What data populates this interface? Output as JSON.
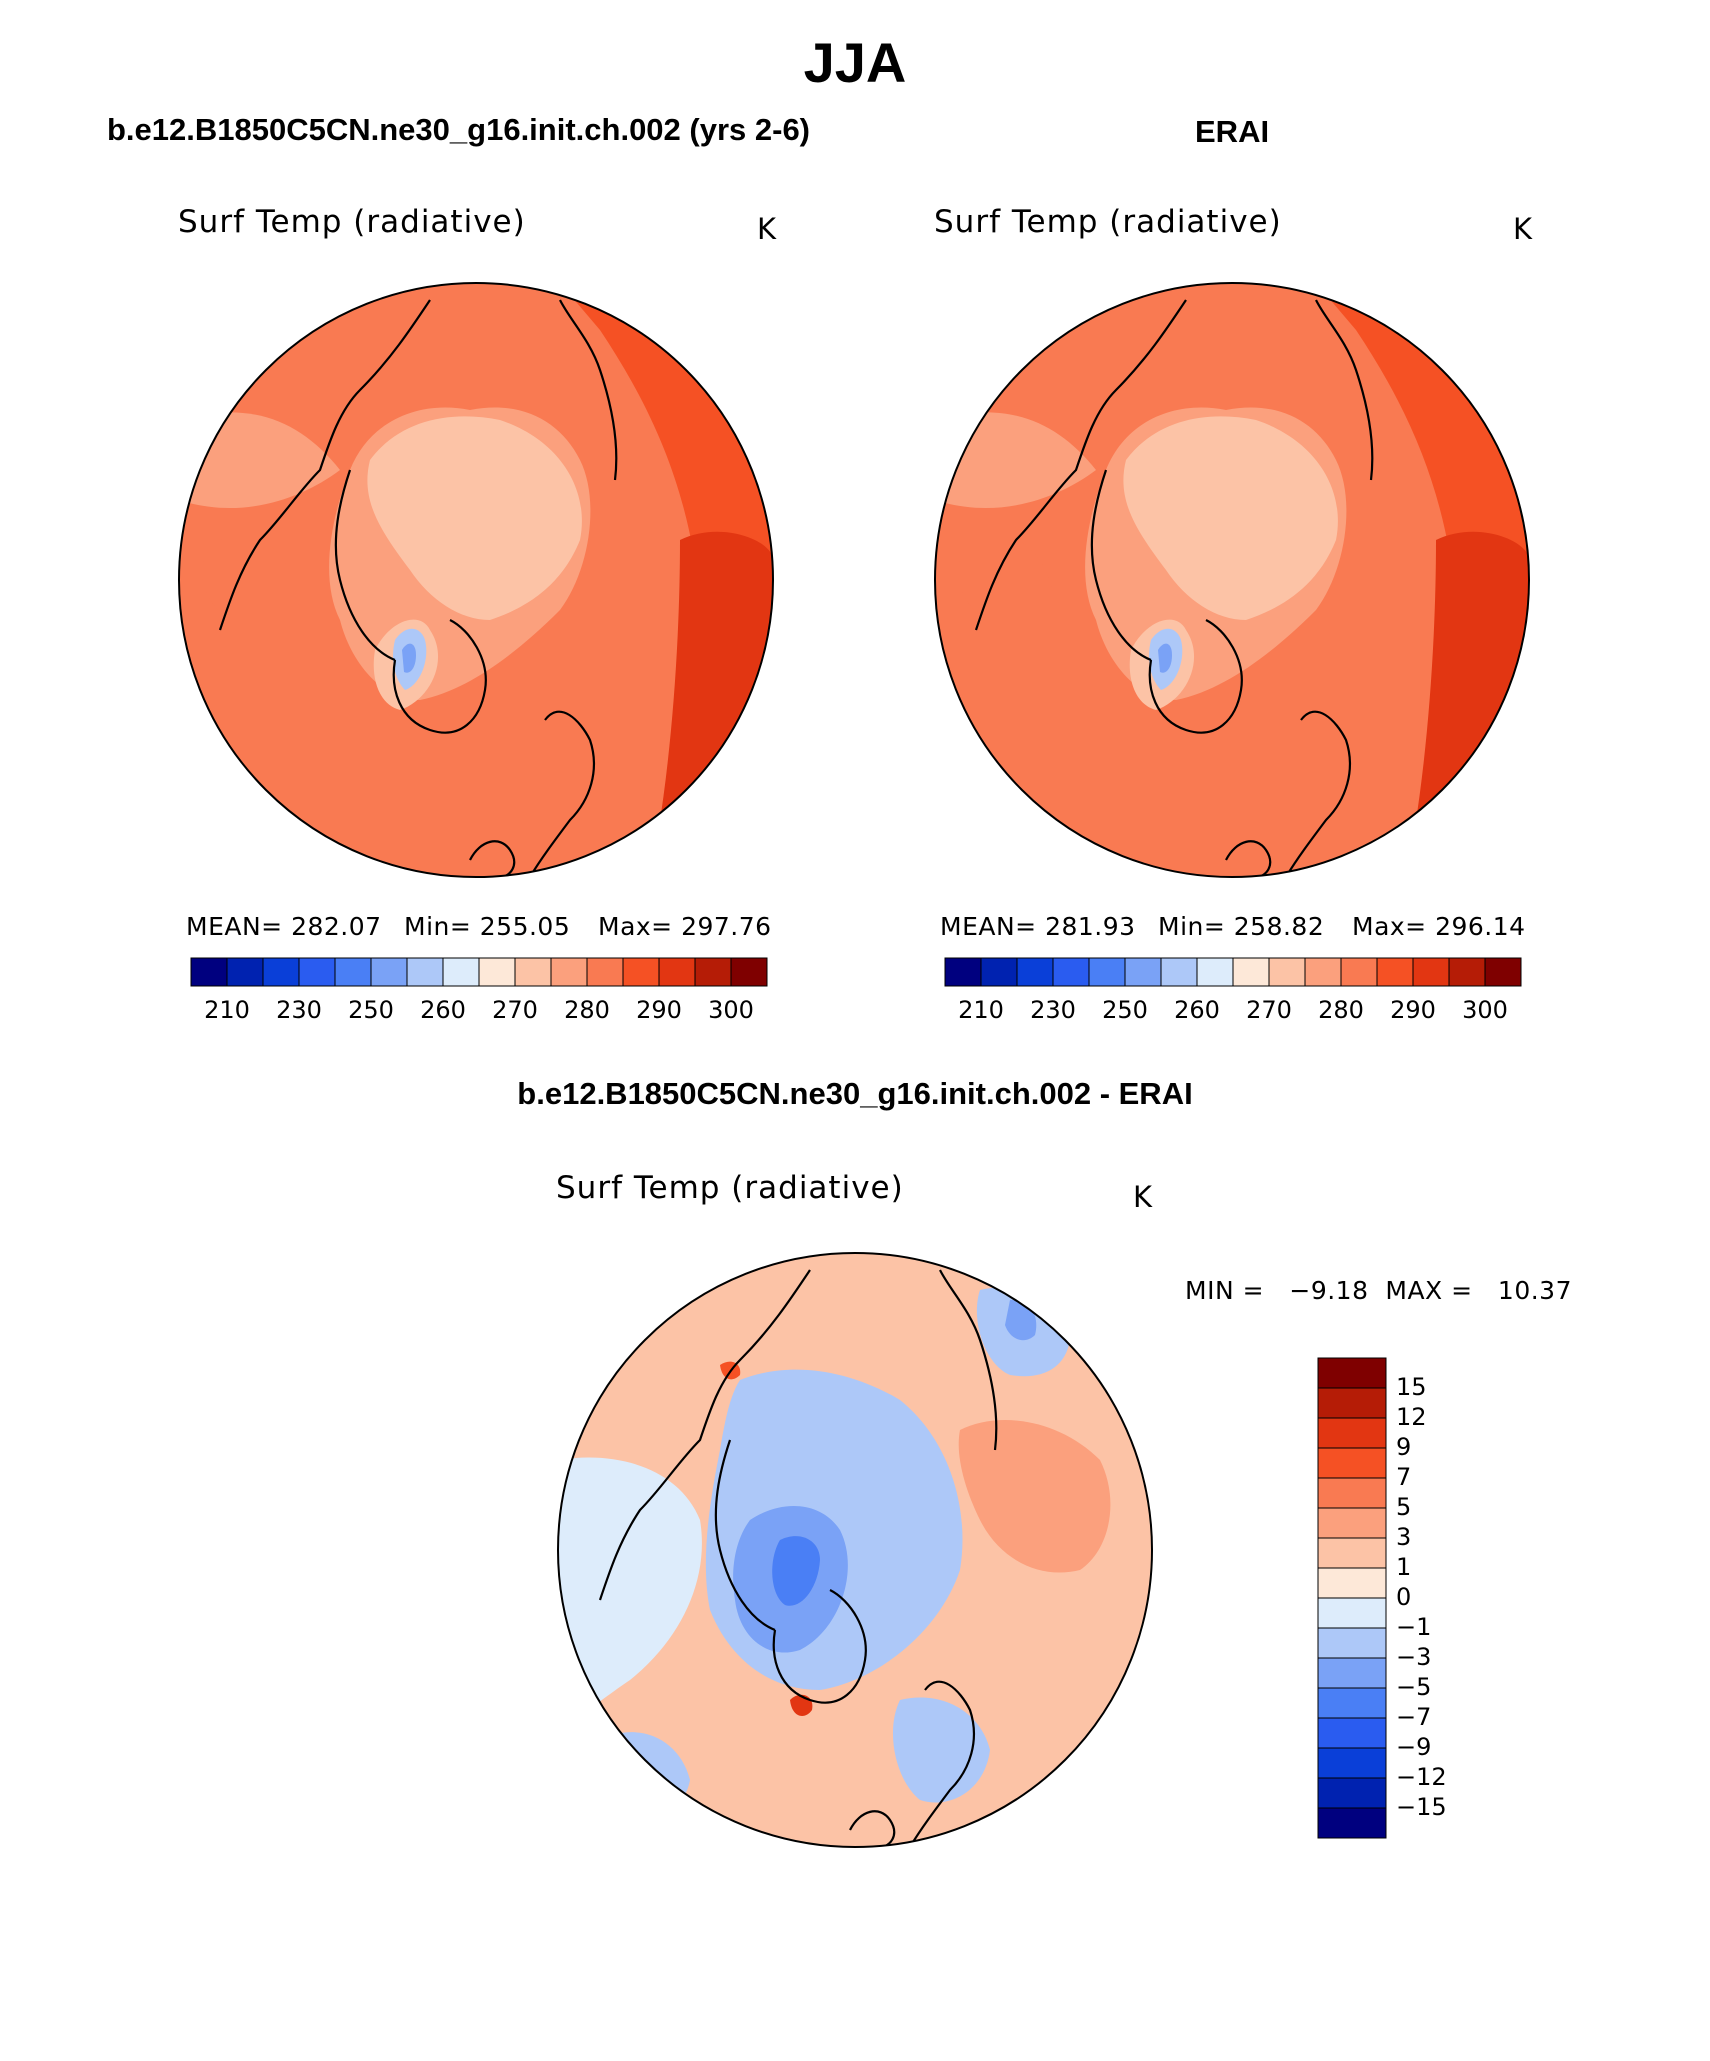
{
  "main_title": "JJA",
  "colors": {
    "abs_palette": [
      "#00007f",
      "#0022b0",
      "#0a3fd8",
      "#2a5cf0",
      "#4a7ff5",
      "#7aa2f6",
      "#adc8f8",
      "#ddecfb",
      "#fde8d8",
      "#fcc3a6",
      "#fba07d",
      "#f97a52",
      "#f55124",
      "#e23612",
      "#b51c06",
      "#7f0000"
    ],
    "diff_palette": [
      "#7f0000",
      "#b51c06",
      "#e23612",
      "#f55124",
      "#f97a52",
      "#fba07d",
      "#fcc3a6",
      "#fde8d8",
      "#ddecfb",
      "#adc8f8",
      "#7aa2f6",
      "#4a7ff5",
      "#2a5cf0",
      "#0a3fd8",
      "#0022b0",
      "#00007f"
    ]
  },
  "panels": {
    "model": {
      "title": "b.e12.B1850C5CN.ne30_g16.init.ch.002 (yrs 2-6)",
      "variable": "Surf Temp (radiative)",
      "units": "K",
      "stats": {
        "mean_label": "MEAN=",
        "mean": "282.07",
        "min_label": "Min=",
        "min": "255.05",
        "max_label": "Max=",
        "max": "297.76"
      },
      "colorbar_ticks": [
        "210",
        "230",
        "250",
        "260",
        "270",
        "280",
        "290",
        "300"
      ]
    },
    "obs": {
      "title": "ERAI",
      "variable": "Surf Temp (radiative)",
      "units": "K",
      "stats": {
        "mean_label": "MEAN=",
        "mean": "281.93",
        "min_label": "Min=",
        "min": "258.82",
        "max_label": "Max=",
        "max": "296.14"
      },
      "colorbar_ticks": [
        "210",
        "230",
        "250",
        "260",
        "270",
        "280",
        "290",
        "300"
      ]
    },
    "diff": {
      "title": "b.e12.B1850C5CN.ne30_g16.init.ch.002 - ERAI",
      "variable": "Surf Temp (radiative)",
      "units": "K",
      "minmax_text": "MIN =   −9.18  MAX =   10.37",
      "colorbar_ticks": [
        "15",
        "12",
        "9",
        "7",
        "5",
        "3",
        "1",
        "0",
        "−1",
        "−3",
        "−5",
        "−7",
        "−9",
        "−12",
        "−15"
      ]
    }
  }
}
